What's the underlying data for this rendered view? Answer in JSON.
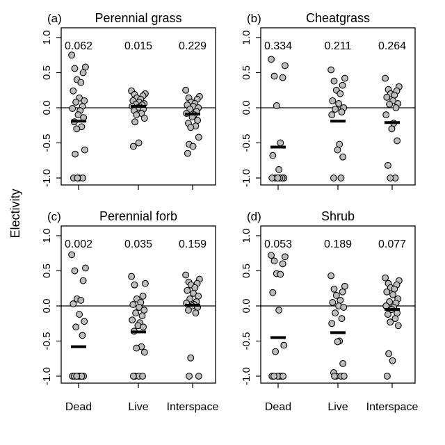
{
  "figure": {
    "ylabel": "Electivity",
    "categories": [
      "Dead",
      "Live",
      "Interspace"
    ],
    "yticks": [
      "1.0",
      "0.5",
      "0.0",
      "-0.5",
      "-1.0"
    ]
  },
  "chart_data": [
    {
      "type": "scatter",
      "letter": "(a)",
      "title": "Perennial grass",
      "categories": [
        "Dead",
        "Live",
        "Interspace"
      ],
      "ylim": [
        -1.0,
        1.0
      ],
      "reference_line": 0,
      "annotations": [
        "0.062",
        "0.015",
        "0.229"
      ],
      "means": [
        -0.19,
        0.02,
        -0.09
      ],
      "points": [
        [
          0.75,
          0.58,
          0.56,
          0.5,
          0.4,
          0.36,
          0.24,
          0.14,
          0.1,
          0.08,
          0.02,
          -0.01,
          -0.04,
          -0.1,
          -0.14,
          -0.2,
          -0.27,
          -0.3,
          -0.6,
          -0.66,
          -1.0,
          -1.0,
          -1.0,
          -1.0
        ],
        [
          0.24,
          0.2,
          0.19,
          0.17,
          0.14,
          0.12,
          0.1,
          0.08,
          0.06,
          0.05,
          0.04,
          0.02,
          0.01,
          0.0,
          -0.02,
          -0.04,
          -0.08,
          -0.1,
          -0.15,
          -0.2,
          -0.5,
          -0.55
        ],
        [
          0.25,
          0.16,
          0.14,
          0.12,
          0.08,
          0.06,
          0.04,
          0.02,
          0.0,
          -0.02,
          -0.05,
          -0.08,
          -0.1,
          -0.13,
          -0.18,
          -0.22,
          -0.26,
          -0.28,
          -0.42,
          -0.52,
          -0.55,
          -0.65
        ]
      ]
    },
    {
      "type": "scatter",
      "letter": "(b)",
      "title": "Cheatgrass",
      "categories": [
        "Dead",
        "Live",
        "Interspace"
      ],
      "ylim": [
        -1.0,
        1.0
      ],
      "reference_line": 0,
      "annotations": [
        "0.334",
        "0.211",
        "0.264"
      ],
      "means": [
        -0.56,
        -0.19,
        -0.21
      ],
      "points": [
        [
          0.69,
          0.6,
          0.45,
          0.43,
          0.03,
          -0.5,
          -0.68,
          -0.88,
          -1.0,
          -1.0,
          -1.0,
          -1.0,
          -1.0,
          -1.0
        ],
        [
          0.54,
          0.42,
          0.38,
          0.32,
          0.25,
          0.2,
          0.1,
          0.06,
          0.0,
          -0.02,
          -0.06,
          -0.1,
          -0.52,
          -0.6,
          -0.7,
          -1.0,
          -1.0
        ],
        [
          0.42,
          0.3,
          0.26,
          0.24,
          0.2,
          0.18,
          0.15,
          0.1,
          0.06,
          0.05,
          0.0,
          -0.1,
          -0.22,
          -0.3,
          -0.47,
          -0.82,
          -1.0,
          -1.0
        ]
      ]
    },
    {
      "type": "scatter",
      "letter": "(c)",
      "title": "Perennial forb",
      "categories": [
        "Dead",
        "Live",
        "Interspace"
      ],
      "ylim": [
        -1.0,
        1.0
      ],
      "reference_line": 0,
      "annotations": [
        "0.002",
        "0.035",
        "0.159"
      ],
      "means": [
        -0.58,
        -0.37,
        0.01
      ],
      "points": [
        [
          0.73,
          0.54,
          0.5,
          0.36,
          0.1,
          0.08,
          0.03,
          -0.12,
          -0.22,
          -0.3,
          -0.42,
          -1.0,
          -1.0,
          -1.0,
          -1.0,
          -1.0,
          -1.0,
          -1.0
        ],
        [
          0.42,
          0.32,
          0.3,
          0.14,
          0.1,
          0.05,
          0.02,
          -0.02,
          -0.06,
          -0.1,
          -0.14,
          -0.2,
          -0.24,
          -0.28,
          -0.3,
          -0.36,
          -0.58,
          -0.6,
          -0.66,
          -1.0,
          -1.0,
          -1.0,
          -1.0
        ],
        [
          0.44,
          0.38,
          0.34,
          0.32,
          0.3,
          0.26,
          0.22,
          0.18,
          0.14,
          0.1,
          0.06,
          0.04,
          0.02,
          0.0,
          -0.02,
          -0.06,
          -0.1,
          -0.74,
          -1.0,
          -1.0
        ]
      ]
    },
    {
      "type": "scatter",
      "letter": "(d)",
      "title": "Shrub",
      "categories": [
        "Dead",
        "Live",
        "Interspace"
      ],
      "ylim": [
        -1.0,
        1.0
      ],
      "reference_line": 0,
      "annotations": [
        "0.053",
        "0.189",
        "0.077"
      ],
      "means": [
        -0.45,
        -0.38,
        -0.05
      ],
      "points": [
        [
          0.72,
          0.7,
          0.64,
          0.6,
          0.46,
          0.45,
          0.19,
          -0.06,
          -0.56,
          -0.65,
          -1.0,
          -1.0,
          -1.0,
          -1.0,
          -1.0,
          -1.0
        ],
        [
          0.43,
          0.28,
          0.24,
          0.2,
          0.15,
          0.08,
          0.05,
          0.0,
          -0.02,
          -0.1,
          -0.18,
          -0.25,
          -0.5,
          -0.51,
          -0.82,
          -0.95,
          -1.0,
          -1.0,
          -1.0,
          -1.0
        ],
        [
          0.4,
          0.36,
          0.32,
          0.3,
          0.26,
          0.24,
          0.2,
          0.16,
          0.1,
          0.06,
          0.04,
          0.0,
          -0.02,
          -0.05,
          -0.1,
          -0.12,
          -0.18,
          -0.23,
          -0.28,
          -0.68,
          -0.78,
          -1.0
        ]
      ]
    }
  ]
}
